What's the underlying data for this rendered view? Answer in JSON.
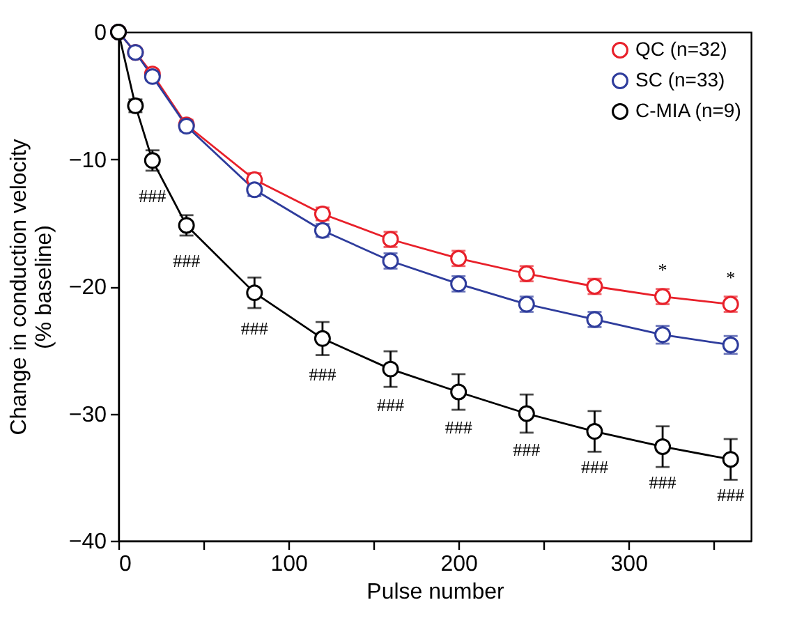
{
  "chart_data": {
    "type": "line",
    "xlabel": "Pulse number",
    "ylabel": "Change in conduction velocity\n(% baseline)",
    "x": [
      0,
      10,
      20,
      40,
      80,
      120,
      160,
      200,
      240,
      280,
      320,
      360
    ],
    "series": [
      {
        "name": "QC (n=32)",
        "color": "#e8202a",
        "values": [
          0,
          -1.6,
          -3.3,
          -7.3,
          -11.6,
          -14.3,
          -16.3,
          -17.8,
          -19.0,
          -20.0,
          -20.8,
          -21.4
        ],
        "errors": [
          null,
          null,
          0.3,
          0.4,
          0.5,
          0.5,
          0.6,
          0.6,
          0.6,
          0.6,
          0.6,
          0.6
        ]
      },
      {
        "name": "SC (n=33)",
        "color": "#2e3c9c",
        "values": [
          0,
          -1.6,
          -3.5,
          -7.4,
          -12.4,
          -15.6,
          -18.0,
          -19.8,
          -21.4,
          -22.6,
          -23.8,
          -24.6
        ],
        "errors": [
          null,
          null,
          0.3,
          0.4,
          0.5,
          0.5,
          0.6,
          0.6,
          0.6,
          0.6,
          0.7,
          0.7
        ]
      },
      {
        "name": "C-MIA (n=9)",
        "color": "#000000",
        "values": [
          0,
          -5.8,
          -10.1,
          -15.2,
          -20.5,
          -24.1,
          -26.5,
          -28.3,
          -30.0,
          -31.4,
          -32.6,
          -33.6
        ],
        "errors": [
          null,
          0.5,
          0.8,
          0.8,
          1.2,
          1.3,
          1.4,
          1.4,
          1.5,
          1.6,
          1.6,
          1.6
        ]
      }
    ],
    "xlim": [
      0,
      372
    ],
    "ylim": [
      -40,
      0
    ],
    "xticks": [
      0,
      {
        "value": 50,
        "label": null
      },
      100,
      {
        "value": 150,
        "label": null
      },
      200,
      {
        "value": 250,
        "label": null
      },
      300,
      {
        "value": 350,
        "label": null
      }
    ],
    "yticks": [
      -40,
      -30,
      -20,
      -10,
      0
    ],
    "marker": "circle",
    "line_style": "solid",
    "grid": false,
    "legend": "top right",
    "annotations": [
      {
        "text": "###",
        "x": 20,
        "y": -10.1
      },
      {
        "text": "###",
        "x": 40,
        "y": -15.2
      },
      {
        "text": "###",
        "x": 80,
        "y": -20.5
      },
      {
        "text": "###",
        "x": 120,
        "y": -24.1
      },
      {
        "text": "###",
        "x": 160,
        "y": -26.5
      },
      {
        "text": "###",
        "x": 200,
        "y": -28.3
      },
      {
        "text": "###",
        "x": 240,
        "y": -30.0
      },
      {
        "text": "###",
        "x": 280,
        "y": -31.4
      },
      {
        "text": "###",
        "x": 320,
        "y": -32.6
      },
      {
        "text": "###",
        "x": 360,
        "y": -33.6
      },
      {
        "text": "*",
        "x": 320,
        "y": -20.8
      },
      {
        "text": "*",
        "x": 360,
        "y": -21.4
      }
    ]
  }
}
